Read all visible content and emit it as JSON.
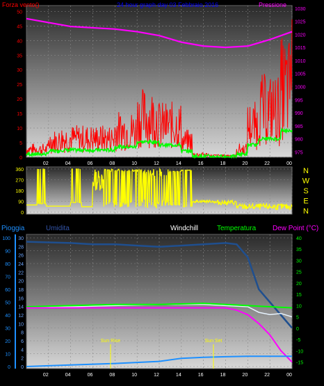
{
  "header": {
    "left": "Forza vento()",
    "center": "24 hour graph day 03 Febbraio 2016",
    "right": "Pressione"
  },
  "bottom_header": {
    "pioggia": "Pioggia",
    "umidita": "Umidita",
    "windchill": "Windchill",
    "temperatura": "Temperatura",
    "dewpoint": "Dew Point (°C)"
  },
  "compass": [
    "N",
    "W",
    "S",
    "E",
    "N"
  ],
  "sun": {
    "rise": "Sun Rise",
    "set": "Sun Set"
  },
  "colors": {
    "wind": "#ff0000",
    "gust_avg": "#00ff00",
    "pressure": "#ff00ff",
    "direction": "#ffff00",
    "rain": "#1e90ff",
    "humidity": "#1f4f8f",
    "windchill": "#ffffff",
    "temperature": "#00ff00",
    "dewpoint": "#ff00ff"
  },
  "chart_data": [
    {
      "type": "line",
      "x_ticks": [
        "02",
        "04",
        "06",
        "08",
        "10",
        "12",
        "14",
        "16",
        "18",
        "20",
        "22",
        "00"
      ],
      "y_left_ticks": [
        0,
        5,
        10,
        15,
        20,
        25,
        30,
        35,
        40,
        45,
        50
      ],
      "y_right_ticks": [
        975,
        980,
        985,
        990,
        995,
        1000,
        1005,
        1010,
        1015,
        1020,
        1025,
        1030
      ],
      "ylim_left": [
        0,
        52
      ],
      "ylim_right": [
        973,
        1031
      ],
      "series": [
        {
          "name": "Pressione",
          "x": [
            0,
            2,
            4,
            6,
            8,
            10,
            12,
            14,
            16,
            18,
            20,
            22,
            24
          ],
          "values": [
            1026,
            1024.5,
            1023,
            1022.5,
            1022,
            1021,
            1019.5,
            1017,
            1015.5,
            1015,
            1015.5,
            1018,
            1021
          ]
        }
      ]
    },
    {
      "type": "line",
      "y_ticks": [
        0,
        90,
        180,
        270,
        360
      ],
      "ylim": [
        0,
        360
      ]
    },
    {
      "type": "line",
      "x_ticks": [
        "02",
        "04",
        "06",
        "08",
        "10",
        "12",
        "14",
        "16",
        "18",
        "20",
        "22",
        "00"
      ],
      "y_left_ticks": [
        0,
        10,
        20,
        30,
        40,
        50,
        60,
        70,
        80,
        90,
        100
      ],
      "y_mid_ticks": [
        0,
        2,
        4,
        6,
        8,
        10,
        12,
        14,
        16,
        18,
        20,
        22,
        24,
        26,
        28,
        30
      ],
      "y_right_ticks": [
        -15,
        -10,
        -5,
        0,
        5,
        10,
        15,
        20,
        25,
        30,
        35,
        40
      ],
      "ylim_right": [
        -17,
        40
      ],
      "series": [
        {
          "name": "Umidita",
          "x": [
            0,
            4,
            6,
            8,
            10,
            12,
            14,
            16,
            18,
            19,
            20,
            21,
            22,
            23,
            24
          ],
          "values": [
            97,
            96,
            95,
            95,
            94,
            93,
            94,
            95,
            96,
            95,
            85,
            60,
            50,
            40,
            30
          ]
        },
        {
          "name": "Temperatura",
          "x": [
            0,
            4,
            8,
            12,
            16,
            18,
            20,
            22,
            24
          ],
          "values": [
            9.5,
            10,
            10.5,
            10.5,
            11,
            10.5,
            10,
            9.5,
            9
          ]
        },
        {
          "name": "Dew Point",
          "x": [
            0,
            4,
            8,
            12,
            16,
            18,
            19,
            20,
            21,
            22,
            23,
            24
          ],
          "values": [
            9,
            9,
            9,
            9,
            9,
            9,
            8,
            6,
            2,
            -3,
            -10,
            -15
          ]
        },
        {
          "name": "Pioggia",
          "x": [
            0,
            4,
            8,
            10,
            12,
            14,
            16,
            18,
            20,
            22,
            24
          ],
          "values": [
            0,
            0.3,
            0.6,
            0.8,
            1.0,
            1.6,
            1.8,
            1.9,
            2.0,
            2.0,
            2.0
          ]
        }
      ]
    }
  ]
}
